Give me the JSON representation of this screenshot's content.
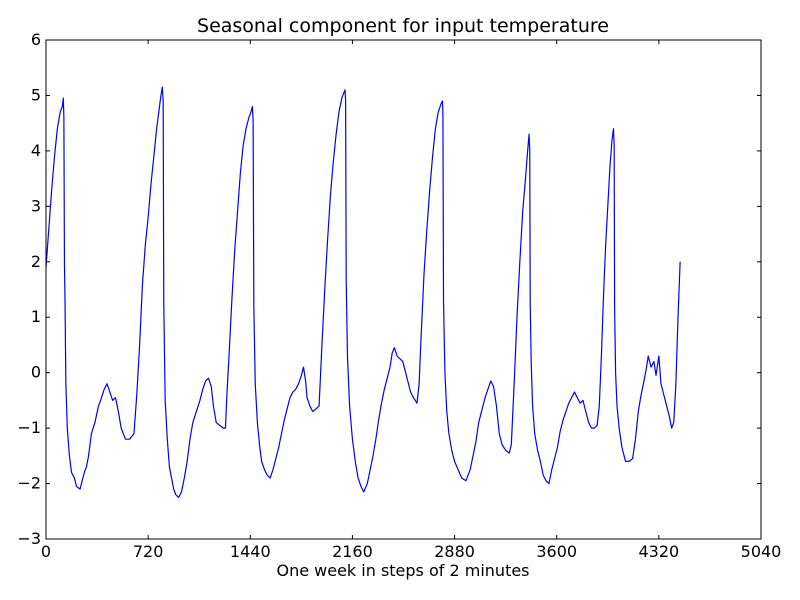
{
  "chart_data": {
    "type": "line",
    "title": "Seasonal component for input temperature",
    "xlabel": "One week in steps of 2 minutes",
    "ylabel": "",
    "xlim": [
      0,
      5040
    ],
    "ylim": [
      -3,
      6
    ],
    "xticks": [
      0,
      720,
      1440,
      2160,
      2880,
      3600,
      4320,
      5040
    ],
    "yticks": [
      -3,
      -2,
      -1,
      0,
      1,
      2,
      3,
      4,
      5,
      6
    ],
    "grid": false,
    "line_color": "#0000ff",
    "series": [
      {
        "values": [
          [
            0,
            1.9
          ],
          [
            20,
            2.6
          ],
          [
            40,
            3.3
          ],
          [
            60,
            3.9
          ],
          [
            80,
            4.4
          ],
          [
            100,
            4.7
          ],
          [
            115,
            4.8
          ],
          [
            122,
            4.95
          ],
          [
            126,
            4.6
          ],
          [
            130,
            2.0
          ],
          [
            134,
            1.3
          ],
          [
            140,
            -0.2
          ],
          [
            150,
            -1.0
          ],
          [
            165,
            -1.5
          ],
          [
            180,
            -1.8
          ],
          [
            200,
            -1.9
          ],
          [
            215,
            -2.05
          ],
          [
            240,
            -2.1
          ],
          [
            270,
            -1.8
          ],
          [
            285,
            -1.7
          ],
          [
            300,
            -1.5
          ],
          [
            320,
            -1.1
          ],
          [
            345,
            -0.9
          ],
          [
            370,
            -0.6
          ],
          [
            385,
            -0.5
          ],
          [
            410,
            -0.3
          ],
          [
            430,
            -0.2
          ],
          [
            450,
            -0.35
          ],
          [
            470,
            -0.5
          ],
          [
            490,
            -0.45
          ],
          [
            510,
            -0.7
          ],
          [
            530,
            -1.0
          ],
          [
            560,
            -1.2
          ],
          [
            590,
            -1.2
          ],
          [
            620,
            -1.1
          ],
          [
            640,
            -0.4
          ],
          [
            660,
            0.5
          ],
          [
            680,
            1.6
          ],
          [
            700,
            2.3
          ],
          [
            720,
            2.8
          ],
          [
            740,
            3.4
          ],
          [
            760,
            3.9
          ],
          [
            780,
            4.4
          ],
          [
            800,
            4.8
          ],
          [
            810,
            5.0
          ],
          [
            820,
            5.15
          ],
          [
            826,
            4.9
          ],
          [
            830,
            1.3
          ],
          [
            840,
            -0.5
          ],
          [
            855,
            -1.2
          ],
          [
            870,
            -1.7
          ],
          [
            885,
            -1.9
          ],
          [
            900,
            -2.1
          ],
          [
            915,
            -2.2
          ],
          [
            935,
            -2.25
          ],
          [
            955,
            -2.15
          ],
          [
            975,
            -1.9
          ],
          [
            995,
            -1.6
          ],
          [
            1015,
            -1.2
          ],
          [
            1035,
            -0.9
          ],
          [
            1060,
            -0.7
          ],
          [
            1085,
            -0.5
          ],
          [
            1105,
            -0.3
          ],
          [
            1125,
            -0.15
          ],
          [
            1145,
            -0.1
          ],
          [
            1165,
            -0.25
          ],
          [
            1180,
            -0.6
          ],
          [
            1200,
            -0.9
          ],
          [
            1225,
            -0.95
          ],
          [
            1250,
            -1.0
          ],
          [
            1265,
            -1.0
          ],
          [
            1275,
            -0.4
          ],
          [
            1290,
            0.3
          ],
          [
            1310,
            1.3
          ],
          [
            1330,
            2.2
          ],
          [
            1350,
            2.9
          ],
          [
            1370,
            3.6
          ],
          [
            1390,
            4.1
          ],
          [
            1410,
            4.4
          ],
          [
            1430,
            4.6
          ],
          [
            1445,
            4.7
          ],
          [
            1455,
            4.8
          ],
          [
            1460,
            4.55
          ],
          [
            1465,
            1.2
          ],
          [
            1475,
            -0.2
          ],
          [
            1490,
            -0.9
          ],
          [
            1505,
            -1.3
          ],
          [
            1520,
            -1.6
          ],
          [
            1540,
            -1.75
          ],
          [
            1560,
            -1.85
          ],
          [
            1580,
            -1.9
          ],
          [
            1600,
            -1.75
          ],
          [
            1620,
            -1.55
          ],
          [
            1640,
            -1.35
          ],
          [
            1660,
            -1.1
          ],
          [
            1680,
            -0.85
          ],
          [
            1700,
            -0.65
          ],
          [
            1720,
            -0.45
          ],
          [
            1740,
            -0.35
          ],
          [
            1760,
            -0.3
          ],
          [
            1780,
            -0.2
          ],
          [
            1800,
            -0.05
          ],
          [
            1815,
            0.1
          ],
          [
            1830,
            -0.15
          ],
          [
            1840,
            -0.45
          ],
          [
            1860,
            -0.6
          ],
          [
            1880,
            -0.7
          ],
          [
            1905,
            -0.65
          ],
          [
            1925,
            -0.6
          ],
          [
            1945,
            0.5
          ],
          [
            1965,
            1.5
          ],
          [
            1985,
            2.4
          ],
          [
            2005,
            3.2
          ],
          [
            2025,
            3.8
          ],
          [
            2045,
            4.3
          ],
          [
            2065,
            4.7
          ],
          [
            2085,
            4.95
          ],
          [
            2100,
            5.05
          ],
          [
            2108,
            5.1
          ],
          [
            2112,
            4.9
          ],
          [
            2116,
            1.7
          ],
          [
            2125,
            0.3
          ],
          [
            2140,
            -0.6
          ],
          [
            2160,
            -1.2
          ],
          [
            2180,
            -1.6
          ],
          [
            2200,
            -1.9
          ],
          [
            2220,
            -2.05
          ],
          [
            2240,
            -2.15
          ],
          [
            2265,
            -2.0
          ],
          [
            2285,
            -1.75
          ],
          [
            2305,
            -1.5
          ],
          [
            2325,
            -1.2
          ],
          [
            2345,
            -0.85
          ],
          [
            2365,
            -0.55
          ],
          [
            2385,
            -0.3
          ],
          [
            2405,
            -0.1
          ],
          [
            2425,
            0.1
          ],
          [
            2440,
            0.35
          ],
          [
            2455,
            0.45
          ],
          [
            2475,
            0.3
          ],
          [
            2495,
            0.25
          ],
          [
            2515,
            0.2
          ],
          [
            2535,
            0.0
          ],
          [
            2550,
            -0.15
          ],
          [
            2570,
            -0.35
          ],
          [
            2590,
            -0.45
          ],
          [
            2615,
            -0.55
          ],
          [
            2630,
            -0.2
          ],
          [
            2645,
            0.7
          ],
          [
            2665,
            1.8
          ],
          [
            2685,
            2.6
          ],
          [
            2705,
            3.3
          ],
          [
            2725,
            3.9
          ],
          [
            2745,
            4.4
          ],
          [
            2765,
            4.7
          ],
          [
            2785,
            4.85
          ],
          [
            2795,
            4.9
          ],
          [
            2798,
            4.6
          ],
          [
            2802,
            1.3
          ],
          [
            2812,
            0.0
          ],
          [
            2825,
            -0.7
          ],
          [
            2840,
            -1.1
          ],
          [
            2860,
            -1.4
          ],
          [
            2880,
            -1.6
          ],
          [
            2905,
            -1.75
          ],
          [
            2930,
            -1.9
          ],
          [
            2960,
            -1.95
          ],
          [
            2990,
            -1.75
          ],
          [
            3010,
            -1.5
          ],
          [
            3030,
            -1.25
          ],
          [
            3050,
            -0.9
          ],
          [
            3075,
            -0.65
          ],
          [
            3095,
            -0.45
          ],
          [
            3115,
            -0.3
          ],
          [
            3135,
            -0.15
          ],
          [
            3155,
            -0.25
          ],
          [
            3175,
            -0.6
          ],
          [
            3195,
            -1.1
          ],
          [
            3215,
            -1.3
          ],
          [
            3240,
            -1.4
          ],
          [
            3265,
            -1.45
          ],
          [
            3280,
            -1.3
          ],
          [
            3300,
            -0.2
          ],
          [
            3320,
            1.0
          ],
          [
            3340,
            2.0
          ],
          [
            3360,
            2.9
          ],
          [
            3380,
            3.5
          ],
          [
            3395,
            4.0
          ],
          [
            3405,
            4.3
          ],
          [
            3410,
            4.0
          ],
          [
            3413,
            1.3
          ],
          [
            3420,
            0.2
          ],
          [
            3430,
            -0.6
          ],
          [
            3445,
            -1.1
          ],
          [
            3465,
            -1.4
          ],
          [
            3485,
            -1.6
          ],
          [
            3505,
            -1.85
          ],
          [
            3525,
            -1.95
          ],
          [
            3545,
            -2.0
          ],
          [
            3565,
            -1.75
          ],
          [
            3585,
            -1.55
          ],
          [
            3605,
            -1.35
          ],
          [
            3625,
            -1.05
          ],
          [
            3645,
            -0.85
          ],
          [
            3665,
            -0.7
          ],
          [
            3685,
            -0.55
          ],
          [
            3705,
            -0.45
          ],
          [
            3725,
            -0.35
          ],
          [
            3745,
            -0.45
          ],
          [
            3765,
            -0.55
          ],
          [
            3785,
            -0.5
          ],
          [
            3805,
            -0.7
          ],
          [
            3825,
            -0.9
          ],
          [
            3845,
            -1.0
          ],
          [
            3865,
            -1.0
          ],
          [
            3885,
            -0.95
          ],
          [
            3900,
            -0.6
          ],
          [
            3915,
            0.3
          ],
          [
            3930,
            1.4
          ],
          [
            3945,
            2.3
          ],
          [
            3960,
            3.0
          ],
          [
            3975,
            3.7
          ],
          [
            3990,
            4.2
          ],
          [
            4000,
            4.4
          ],
          [
            4005,
            4.1
          ],
          [
            4008,
            1.2
          ],
          [
            4015,
            0.0
          ],
          [
            4025,
            -0.6
          ],
          [
            4040,
            -1.0
          ],
          [
            4060,
            -1.35
          ],
          [
            4085,
            -1.6
          ],
          [
            4110,
            -1.6
          ],
          [
            4135,
            -1.55
          ],
          [
            4155,
            -1.2
          ],
          [
            4175,
            -0.7
          ],
          [
            4195,
            -0.4
          ],
          [
            4215,
            -0.15
          ],
          [
            4230,
            0.05
          ],
          [
            4245,
            0.3
          ],
          [
            4265,
            0.1
          ],
          [
            4285,
            0.2
          ],
          [
            4300,
            -0.05
          ],
          [
            4320,
            0.3
          ],
          [
            4335,
            -0.2
          ],
          [
            4355,
            -0.4
          ],
          [
            4375,
            -0.6
          ],
          [
            4395,
            -0.8
          ],
          [
            4410,
            -1.0
          ],
          [
            4425,
            -0.9
          ],
          [
            4440,
            -0.2
          ],
          [
            4455,
            1.0
          ],
          [
            4470,
            2.0
          ]
        ]
      }
    ]
  }
}
